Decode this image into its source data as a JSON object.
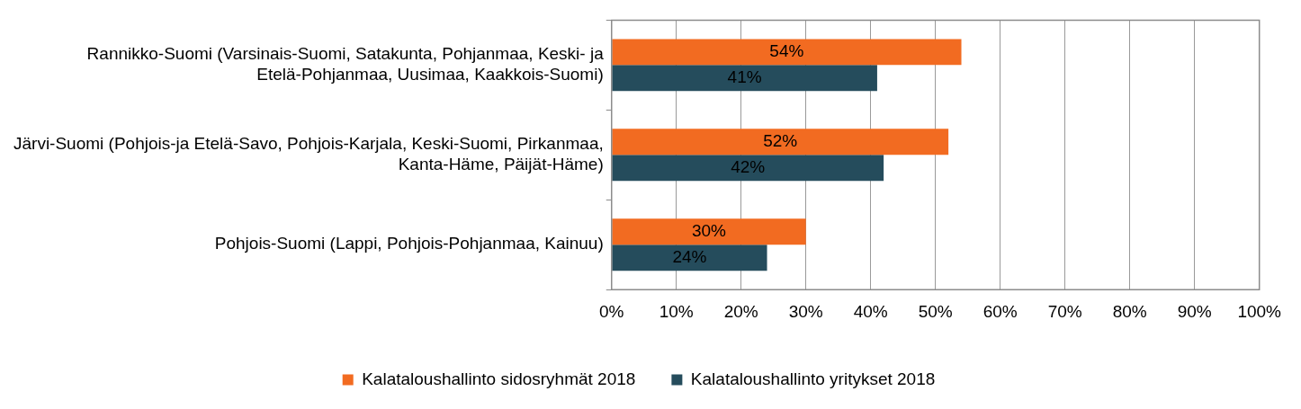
{
  "chart_data": {
    "type": "bar",
    "orientation": "horizontal",
    "categories": [
      "Rannikko-Suomi (Varsinais-Suomi, Satakunta, Pohjanmaa, Keski- ja Etelä-Pohjanmaa, Uusimaa, Kaakkois-Suomi)",
      "Järvi-Suomi (Pohjois-ja Etelä-Savo, Pohjois-Karjala, Keski-Suomi, Pirkanmaa, Kanta-Häme, Päijät-Häme)",
      "Pohjois-Suomi (Lappi, Pohjois-Pohjanmaa, Kainuu)"
    ],
    "series": [
      {
        "name": "Kalataloushallinto sidosryhmät 2018",
        "color": "#f26b21",
        "values": [
          54,
          52,
          30
        ],
        "value_labels": [
          "54%",
          "52%",
          "30%"
        ]
      },
      {
        "name": "Kalataloushallinto yritykset 2018",
        "color": "#254c5c",
        "values": [
          41,
          42,
          24
        ],
        "value_labels": [
          "41%",
          "42%",
          "24%"
        ]
      }
    ],
    "xlim": [
      0,
      100
    ],
    "xticks": [
      {
        "value": 0,
        "label": "0%"
      },
      {
        "value": 10,
        "label": "10%"
      },
      {
        "value": 20,
        "label": "20%"
      },
      {
        "value": 30,
        "label": "30%"
      },
      {
        "value": 40,
        "label": "40%"
      },
      {
        "value": 50,
        "label": "50%"
      },
      {
        "value": 60,
        "label": "60%"
      },
      {
        "value": 70,
        "label": "70%"
      },
      {
        "value": 80,
        "label": "80%"
      },
      {
        "value": 90,
        "label": "90%"
      },
      {
        "value": 100,
        "label": "100%"
      }
    ],
    "grid": "x",
    "legend": "bottom"
  }
}
